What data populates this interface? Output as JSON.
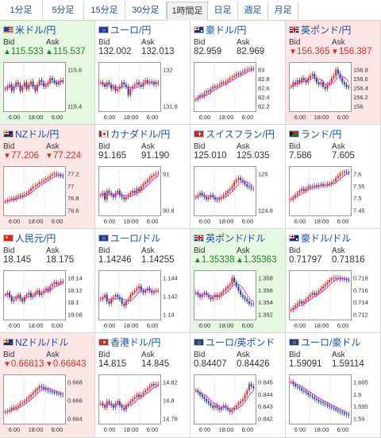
{
  "tabs": [
    {
      "label": "1分足",
      "active": false
    },
    {
      "label": "5分足",
      "active": false
    },
    {
      "label": "15分足",
      "active": false
    },
    {
      "label": "30分足",
      "active": false
    },
    {
      "label": "1時間足",
      "active": true
    },
    {
      "label": "日足",
      "active": false
    },
    {
      "label": "週足",
      "active": false
    },
    {
      "label": "月足",
      "active": false
    }
  ],
  "labels": {
    "bid": "Bid",
    "ask": "Ask"
  },
  "x_ticks": [
    "6:00",
    "18:00",
    "6:00"
  ],
  "colors": {
    "up": "#1e8a1e",
    "down": "#d03030",
    "bg_up": "#e6f7e2",
    "bg_down": "#fde6e6",
    "link": "#1a4fa0",
    "ma": "#cc33cc"
  },
  "pairs": [
    {
      "name": "米ドル/円",
      "flag": "us-flag",
      "bid": "115.533",
      "ask": "115.537",
      "change": "up",
      "yticks": [
        "115.6",
        "115.4"
      ],
      "trend": [
        0.45,
        0.5,
        0.55,
        0.4,
        0.5,
        0.6,
        0.55,
        0.4,
        0.5,
        0.6,
        0.45,
        0.55,
        0.62,
        0.5,
        0.4,
        0.55,
        0.65,
        0.6,
        0.5,
        0.55,
        0.6,
        0.7,
        0.65,
        0.6,
        0.55,
        0.6,
        0.65,
        0.62
      ]
    },
    {
      "name": "ユーロ/円",
      "flag": "eu-flag",
      "bid": "132.002",
      "ask": "132.013",
      "change": "neutral",
      "yticks": [
        "132",
        "131.8"
      ],
      "trend": [
        0.6,
        0.55,
        0.5,
        0.6,
        0.55,
        0.45,
        0.5,
        0.4,
        0.45,
        0.5,
        0.6,
        0.55,
        0.5,
        0.3,
        0.45,
        0.5,
        0.55,
        0.6,
        0.55,
        0.5,
        0.6,
        0.65,
        0.6,
        0.62,
        0.6,
        0.55,
        0.6,
        0.58
      ]
    },
    {
      "name": "豪ドル/円",
      "flag": "au-flag",
      "bid": "82.959",
      "ask": "82.969",
      "change": "neutral",
      "yticks": [
        "83",
        "82.8",
        "82.6",
        "82.4",
        "82.2"
      ],
      "trend": [
        0.2,
        0.25,
        0.3,
        0.28,
        0.35,
        0.4,
        0.38,
        0.45,
        0.5,
        0.48,
        0.52,
        0.55,
        0.6,
        0.58,
        0.62,
        0.65,
        0.7,
        0.72,
        0.75,
        0.8,
        0.78,
        0.82,
        0.85,
        0.88,
        0.9,
        0.92,
        0.9,
        0.93
      ]
    },
    {
      "name": "英ポンド/円",
      "flag": "uk-flag",
      "bid": "156.365",
      "ask": "156.387",
      "change": "down",
      "yticks": [
        "156.8",
        "156.6",
        "156.4",
        "156.2",
        "156"
      ],
      "trend": [
        0.5,
        0.6,
        0.55,
        0.65,
        0.6,
        0.7,
        0.65,
        0.6,
        0.7,
        0.75,
        0.8,
        0.7,
        0.6,
        0.55,
        0.6,
        0.5,
        0.45,
        0.55,
        0.6,
        0.7,
        0.75,
        0.9,
        0.8,
        0.7,
        0.6,
        0.55,
        0.5,
        0.48
      ]
    },
    {
      "name": "NZドル/円",
      "flag": "nz-flag",
      "bid": "77.206",
      "ask": "77.224",
      "change": "down",
      "yticks": [
        "77.2",
        "77",
        "76.8",
        "76.6"
      ],
      "trend": [
        0.25,
        0.28,
        0.3,
        0.32,
        0.3,
        0.35,
        0.38,
        0.36,
        0.4,
        0.42,
        0.45,
        0.5,
        0.55,
        0.6,
        0.62,
        0.65,
        0.7,
        0.72,
        0.75,
        0.78,
        0.8,
        0.85,
        0.88,
        0.9,
        0.88,
        0.86,
        0.85,
        0.84
      ]
    },
    {
      "name": "カナダドル/円",
      "flag": "ca-flag",
      "bid": "91.165",
      "ask": "91.190",
      "change": "neutral",
      "yticks": [
        "91",
        "90.8"
      ],
      "trend": [
        0.4,
        0.45,
        0.3,
        0.5,
        0.45,
        0.4,
        0.35,
        0.45,
        0.5,
        0.4,
        0.35,
        0.3,
        0.35,
        0.4,
        0.45,
        0.5,
        0.45,
        0.55,
        0.5,
        0.6,
        0.65,
        0.7,
        0.75,
        0.8,
        0.85,
        0.88,
        0.9,
        0.92
      ]
    },
    {
      "name": "スイスフラン/円",
      "flag": "ch-flag",
      "bid": "125.010",
      "ask": "125.035",
      "change": "neutral",
      "yticks": [
        "125",
        "124.8"
      ],
      "trend": [
        0.35,
        0.4,
        0.45,
        0.4,
        0.35,
        0.3,
        0.35,
        0.4,
        0.35,
        0.3,
        0.28,
        0.32,
        0.35,
        0.4,
        0.45,
        0.5,
        0.55,
        0.6,
        0.7,
        0.75,
        0.8,
        0.75,
        0.7,
        0.65,
        0.6,
        0.58,
        0.55,
        0.55
      ]
    },
    {
      "name": "ランド/円",
      "flag": "za-flag",
      "bid": "7.586",
      "ask": "7.605",
      "change": "neutral",
      "yticks": [
        "7.6",
        "7.55",
        "7.5",
        "7.45"
      ],
      "trend": [
        0.3,
        0.35,
        0.4,
        0.45,
        0.5,
        0.55,
        0.5,
        0.55,
        0.6,
        0.58,
        0.6,
        0.62,
        0.6,
        0.63,
        0.65,
        0.62,
        0.64,
        0.66,
        0.65,
        0.7,
        0.72,
        0.8,
        0.85,
        0.9,
        0.92,
        0.95,
        0.93,
        0.92
      ]
    },
    {
      "name": "人民元/円",
      "flag": "cn-flag",
      "bid": "18.145",
      "ask": "18.175",
      "change": "neutral",
      "yticks": [
        "18.14",
        "18.12",
        "18.1",
        "18.08"
      ],
      "trend": [
        0.5,
        0.55,
        0.45,
        0.35,
        0.4,
        0.45,
        0.5,
        0.4,
        0.35,
        0.45,
        0.5,
        0.55,
        0.45,
        0.5,
        0.55,
        0.6,
        0.5,
        0.55,
        0.6,
        0.65,
        0.6,
        0.7,
        0.75,
        0.8,
        0.75,
        0.78,
        0.82,
        0.8
      ]
    },
    {
      "name": "ユーロ/ドル",
      "flag": "eu-flag",
      "bid": "1.14246",
      "ask": "1.14255",
      "change": "neutral",
      "yticks": [
        "1.144",
        "1.142",
        "1.14"
      ],
      "trend": [
        0.4,
        0.45,
        0.5,
        0.35,
        0.3,
        0.4,
        0.45,
        0.5,
        0.45,
        0.4,
        0.3,
        0.25,
        0.35,
        0.4,
        0.5,
        0.55,
        0.6,
        0.65,
        0.7,
        0.6,
        0.55,
        0.6,
        0.65,
        0.6,
        0.55,
        0.58,
        0.6,
        0.6
      ]
    },
    {
      "name": "英ポンド/ドル",
      "flag": "uk-flag",
      "bid": "1.35338",
      "ask": "1.35363",
      "change": "up",
      "yticks": [
        "1.358",
        "1.356",
        "1.354",
        "1.352"
      ],
      "trend": [
        0.55,
        0.5,
        0.45,
        0.5,
        0.55,
        0.5,
        0.45,
        0.4,
        0.45,
        0.5,
        0.45,
        0.5,
        0.55,
        0.6,
        0.65,
        0.7,
        0.75,
        0.9,
        0.8,
        0.7,
        0.6,
        0.5,
        0.45,
        0.4,
        0.35,
        0.3,
        0.28,
        0.3
      ]
    },
    {
      "name": "豪ドル/ドル",
      "flag": "au-flag",
      "bid": "0.71797",
      "ask": "0.71816",
      "change": "neutral",
      "yticks": [
        "0.718",
        "0.716",
        "0.714",
        "0.712"
      ],
      "trend": [
        0.15,
        0.2,
        0.25,
        0.3,
        0.35,
        0.3,
        0.35,
        0.4,
        0.45,
        0.5,
        0.55,
        0.5,
        0.55,
        0.6,
        0.65,
        0.7,
        0.75,
        0.8,
        0.85,
        0.88,
        0.9,
        0.88,
        0.9,
        0.87,
        0.88,
        0.86,
        0.85,
        0.84
      ]
    },
    {
      "name": "NZドル/ドル",
      "flag": "nz-flag",
      "bid": "0.66813",
      "ask": "0.66843",
      "change": "down",
      "yticks": [
        "0.668",
        "0.666",
        "0.664"
      ],
      "trend": [
        0.2,
        0.22,
        0.25,
        0.3,
        0.28,
        0.32,
        0.35,
        0.4,
        0.42,
        0.45,
        0.5,
        0.55,
        0.6,
        0.65,
        0.7,
        0.75,
        0.8,
        0.78,
        0.75,
        0.72,
        0.7,
        0.68,
        0.66,
        0.65,
        0.63,
        0.62,
        0.6,
        0.6
      ]
    },
    {
      "name": "香港ドル/円",
      "flag": "hk-flag",
      "bid": "14.815",
      "ask": "14.845",
      "change": "neutral",
      "yticks": [
        "14.82",
        "14.8",
        "14.78"
      ],
      "trend": [
        0.4,
        0.35,
        0.3,
        0.45,
        0.4,
        0.35,
        0.3,
        0.4,
        0.45,
        0.35,
        0.3,
        0.25,
        0.35,
        0.4,
        0.45,
        0.5,
        0.55,
        0.6,
        0.55,
        0.6,
        0.65,
        0.7,
        0.75,
        0.8,
        0.85,
        0.82,
        0.84,
        0.85
      ]
    },
    {
      "name": "ユーロ/英ポンド",
      "flag": "eu-flag",
      "bid": "0.84407",
      "ask": "0.84426",
      "change": "neutral",
      "yticks": [
        "0.845",
        "0.844",
        "0.843",
        "0.842"
      ],
      "trend": [
        0.7,
        0.65,
        0.6,
        0.55,
        0.5,
        0.45,
        0.4,
        0.35,
        0.3,
        0.35,
        0.3,
        0.25,
        0.3,
        0.35,
        0.3,
        0.25,
        0.2,
        0.25,
        0.3,
        0.35,
        0.4,
        0.45,
        0.5,
        0.6,
        0.7,
        0.85,
        0.8,
        0.75
      ]
    },
    {
      "name": "ユーロ/豪ドル",
      "flag": "eu-flag",
      "bid": "1.59091",
      "ask": "1.59114",
      "change": "neutral",
      "yticks": [
        "1.605",
        "1.6",
        "1.595",
        "1.59"
      ],
      "trend": [
        0.9,
        0.85,
        0.8,
        0.78,
        0.75,
        0.7,
        0.68,
        0.65,
        0.6,
        0.58,
        0.55,
        0.5,
        0.48,
        0.45,
        0.42,
        0.4,
        0.38,
        0.35,
        0.32,
        0.3,
        0.28,
        0.25,
        0.22,
        0.2,
        0.18,
        0.15,
        0.14,
        0.12
      ]
    }
  ]
}
